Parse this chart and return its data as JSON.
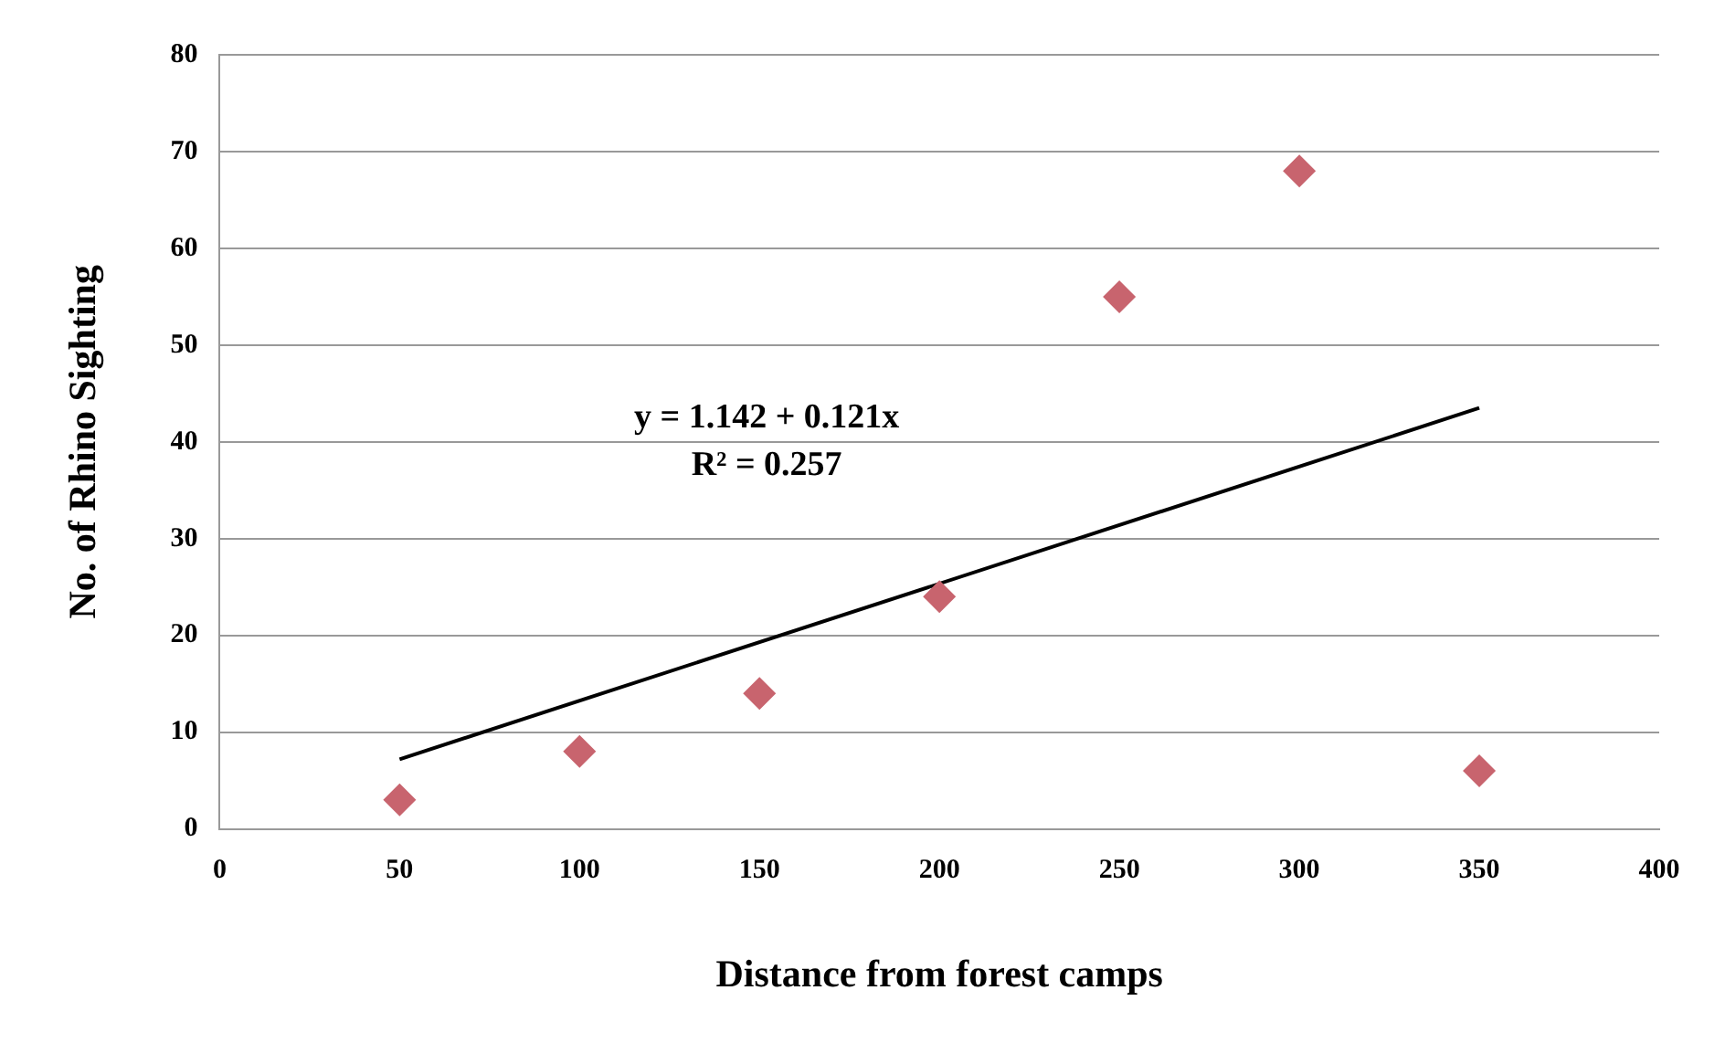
{
  "chart_data": {
    "type": "scatter",
    "xlabel": "Distance from forest camps",
    "ylabel": "No. of Rhino Sighting",
    "series": [
      {
        "type": "scatter",
        "color": "#c8646e",
        "marker": "diamond",
        "x": [
          50,
          100,
          150,
          200,
          250,
          300,
          350
        ],
        "values": [
          3,
          8,
          14,
          24,
          55,
          68,
          6
        ]
      },
      {
        "type": "line",
        "color": "#000000",
        "marker": "none",
        "x": [
          50,
          350
        ],
        "values": [
          7.2,
          43.5
        ]
      }
    ],
    "xlim": [
      0,
      400
    ],
    "xticks": [
      0,
      50,
      100,
      150,
      200,
      250,
      300,
      350,
      400
    ],
    "ylim": [
      0,
      80
    ],
    "yticks": [
      0,
      10,
      20,
      30,
      40,
      50,
      60,
      70,
      80
    ],
    "grid": "y",
    "legend": false,
    "annotations": [
      "y = 1.142 + 0.121x",
      "R² = 0.257"
    ]
  }
}
